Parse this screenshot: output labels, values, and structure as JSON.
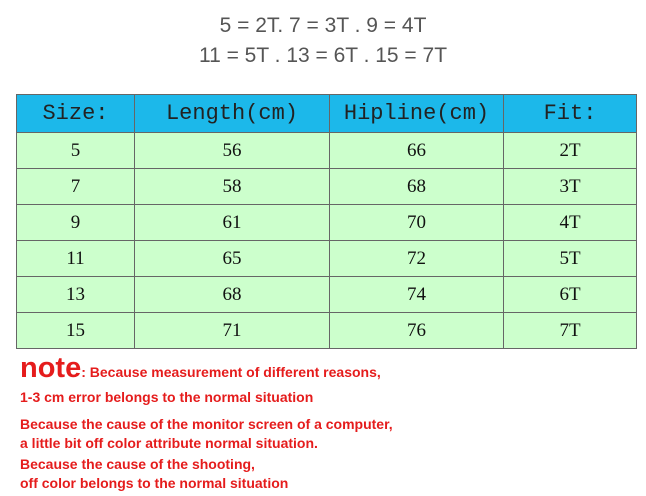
{
  "header": {
    "lines": [
      "5 = 2T.  7 = 3T  . 9 = 4T",
      "11 = 5T . 13 = 6T . 15 = 7T"
    ]
  },
  "table": {
    "columns": [
      "Size:",
      "Length(cm)",
      "Hipline(cm)",
      "Fit:"
    ],
    "rows": [
      [
        "5",
        "56",
        "66",
        "2T"
      ],
      [
        "7",
        "58",
        "68",
        "3T"
      ],
      [
        "9",
        "61",
        "70",
        "4T"
      ],
      [
        "11",
        "65",
        "72",
        "5T"
      ],
      [
        "13",
        "68",
        "74",
        "6T"
      ],
      [
        "15",
        "71",
        "76",
        "7T"
      ]
    ]
  },
  "notes": {
    "title": "note",
    "first_lines": [
      ": Because measurement of different reasons,",
      "1-3 cm error belongs to the normal situation"
    ],
    "lines": [
      "Because the cause of the monitor screen of a computer,",
      "a little bit off color attribute normal situation.",
      "Because the cause of the shooting,",
      "off color belongs to the normal situation"
    ]
  }
}
